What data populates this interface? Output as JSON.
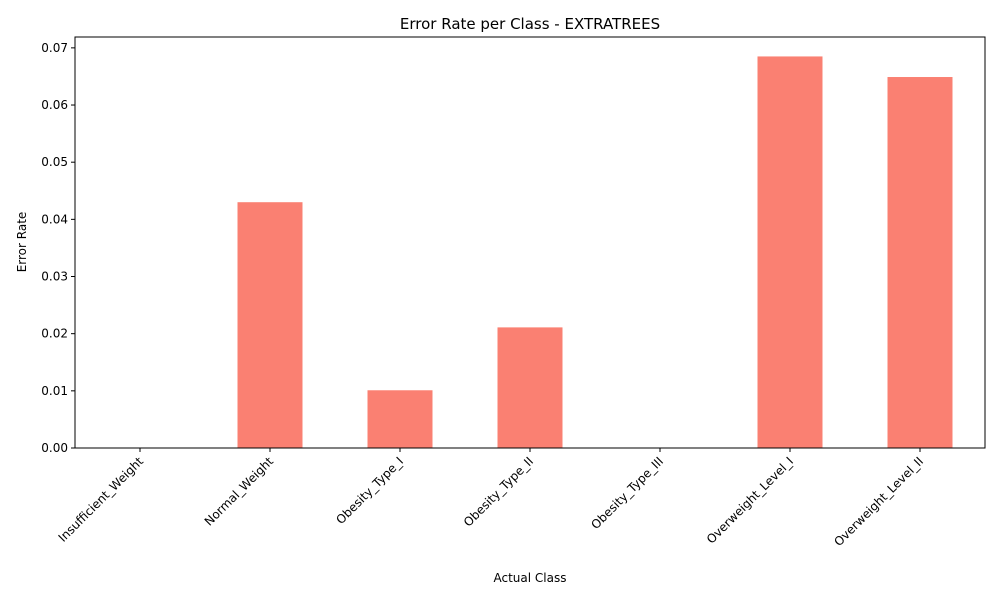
{
  "chart_data": {
    "type": "bar",
    "title": "Error Rate per Class - EXTRATREES",
    "xlabel": "Actual Class",
    "ylabel": "Error Rate",
    "categories": [
      "Insufficient_Weight",
      "Normal_Weight",
      "Obesity_Type_I",
      "Obesity_Type_II",
      "Obesity_Type_III",
      "Overweight_Level_I",
      "Overweight_Level_II"
    ],
    "values": [
      0.0,
      0.043,
      0.0101,
      0.0211,
      0.0,
      0.0685,
      0.0649
    ],
    "yticks": [
      "0.00",
      "0.01",
      "0.02",
      "0.03",
      "0.04",
      "0.05",
      "0.06",
      "0.07"
    ],
    "ylim": [
      0,
      0.0719
    ],
    "bar_color": "#fa8072",
    "grid": false,
    "legend": "none"
  }
}
